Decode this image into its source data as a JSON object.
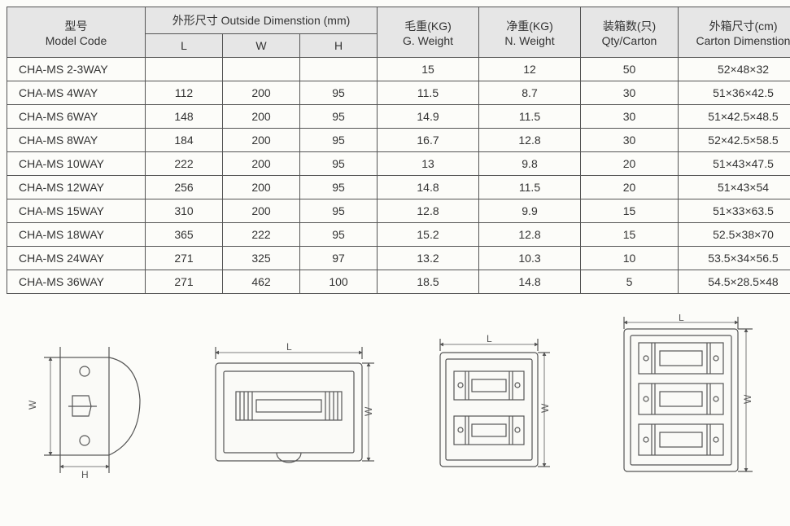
{
  "headers": {
    "model": {
      "cn": "型号",
      "en": "Model Code"
    },
    "outside": {
      "cn": "外形尺寸 Outside Dimenstion (mm)"
    },
    "L": "L",
    "W": "W",
    "H": "H",
    "gw": {
      "cn": "毛重(KG)",
      "en": "G. Weight"
    },
    "nw": {
      "cn": "净重(KG)",
      "en": "N. Weight"
    },
    "qty": {
      "cn": "装箱数(只)",
      "en": "Qty/Carton"
    },
    "carton": {
      "cn": "外箱尺寸(cm)",
      "en": "Carton Dimenstion"
    }
  },
  "rows": [
    {
      "model": "CHA-MS 2-3WAY",
      "L": "",
      "W": "",
      "H": "",
      "gw": "15",
      "nw": "12",
      "qty": "50",
      "carton": "52×48×32"
    },
    {
      "model": "CHA-MS 4WAY",
      "L": "112",
      "W": "200",
      "H": "95",
      "gw": "11.5",
      "nw": "8.7",
      "qty": "30",
      "carton": "51×36×42.5"
    },
    {
      "model": "CHA-MS 6WAY",
      "L": "148",
      "W": "200",
      "H": "95",
      "gw": "14.9",
      "nw": "11.5",
      "qty": "30",
      "carton": "51×42.5×48.5"
    },
    {
      "model": "CHA-MS 8WAY",
      "L": "184",
      "W": "200",
      "H": "95",
      "gw": "16.7",
      "nw": "12.8",
      "qty": "30",
      "carton": "52×42.5×58.5"
    },
    {
      "model": "CHA-MS 10WAY",
      "L": "222",
      "W": "200",
      "H": "95",
      "gw": "13",
      "nw": "9.8",
      "qty": "20",
      "carton": "51×43×47.5"
    },
    {
      "model": "CHA-MS 12WAY",
      "L": "256",
      "W": "200",
      "H": "95",
      "gw": "14.8",
      "nw": "11.5",
      "qty": "20",
      "carton": "51×43×54"
    },
    {
      "model": "CHA-MS 15WAY",
      "L": "310",
      "W": "200",
      "H": "95",
      "gw": "12.8",
      "nw": "9.9",
      "qty": "15",
      "carton": "51×33×63.5"
    },
    {
      "model": "CHA-MS 18WAY",
      "L": "365",
      "W": "222",
      "H": "95",
      "gw": "15.2",
      "nw": "12.8",
      "qty": "15",
      "carton": "52.5×38×70"
    },
    {
      "model": "CHA-MS 24WAY",
      "L": "271",
      "W": "325",
      "H": "97",
      "gw": "13.2",
      "nw": "10.3",
      "qty": "10",
      "carton": "53.5×34×56.5"
    },
    {
      "model": "CHA-MS 36WAY",
      "L": "271",
      "W": "462",
      "H": "100",
      "gw": "18.5",
      "nw": "14.8",
      "qty": "5",
      "carton": "54.5×28.5×48"
    }
  ],
  "dimLabels": {
    "L": "L",
    "W": "W",
    "H": "H"
  }
}
